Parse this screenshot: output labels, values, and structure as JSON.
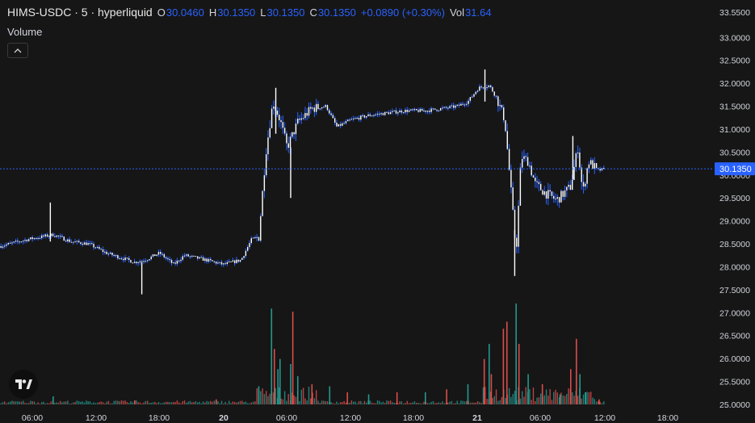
{
  "header": {
    "symbol": "HIMS-USDC · 5 · hyperliquid",
    "open_label": "O",
    "open_value": "30.0460",
    "high_label": "H",
    "high_value": "30.1350",
    "low_label": "L",
    "low_value": "30.1350",
    "close_label": "C",
    "close_value": "30.1350",
    "change": "+0.0890 (+0.30%)",
    "vol_label": "Vol",
    "vol_value": "31.64"
  },
  "volume_pane_label": "Volume",
  "colors": {
    "background": "#161616",
    "candle": "#ffffff",
    "wick": "#2962ff",
    "accent": "#2962ff",
    "volume_up": "#26a69a",
    "volume_down": "#ef5350",
    "axis_text": "#d1d4dc"
  },
  "icons": {
    "collapse": "chevron-up-icon",
    "logo": "tradingview-logo-icon"
  },
  "chart_data": {
    "type": "candlestick",
    "y_ticks": [
      "33.5500",
      "33.0000",
      "32.5000",
      "32.0000",
      "31.5000",
      "31.0000",
      "30.5000",
      "30.0000",
      "29.5000",
      "29.0000",
      "28.5000",
      "28.0000",
      "27.5000",
      "27.0000",
      "26.5000",
      "26.0000",
      "25.5000",
      "25.0000"
    ],
    "x_ticks": [
      "06:00",
      "12:00",
      "18:00",
      "20",
      "06:00",
      "12:00",
      "18:00",
      "21",
      "06:00",
      "12:00",
      "18:00"
    ],
    "bold_x_ticks": [
      "20",
      "21"
    ],
    "ylim": [
      25.0,
      33.55
    ],
    "last_price": 30.135,
    "last_price_label": "30.1350",
    "price_path": [
      [
        0.0,
        28.45
      ],
      [
        0.04,
        28.6
      ],
      [
        0.075,
        28.7
      ],
      [
        0.1,
        28.55
      ],
      [
        0.125,
        28.5
      ],
      [
        0.15,
        28.3
      ],
      [
        0.17,
        28.2
      ],
      [
        0.19,
        28.1
      ],
      [
        0.205,
        28.15
      ],
      [
        0.225,
        28.3
      ],
      [
        0.245,
        28.05
      ],
      [
        0.26,
        28.25
      ],
      [
        0.29,
        28.15
      ],
      [
        0.315,
        28.05
      ],
      [
        0.34,
        28.15
      ],
      [
        0.355,
        28.6
      ],
      [
        0.365,
        28.65
      ],
      [
        0.375,
        30.5
      ],
      [
        0.385,
        31.6
      ],
      [
        0.395,
        31.2
      ],
      [
        0.405,
        30.6
      ],
      [
        0.42,
        31.15
      ],
      [
        0.44,
        31.45
      ],
      [
        0.46,
        31.5
      ],
      [
        0.475,
        31.05
      ],
      [
        0.495,
        31.2
      ],
      [
        0.52,
        31.3
      ],
      [
        0.545,
        31.35
      ],
      [
        0.57,
        31.4
      ],
      [
        0.6,
        31.4
      ],
      [
        0.625,
        31.45
      ],
      [
        0.645,
        31.5
      ],
      [
        0.66,
        31.6
      ],
      [
        0.675,
        31.9
      ],
      [
        0.69,
        31.95
      ],
      [
        0.7,
        31.7
      ],
      [
        0.712,
        31.2
      ],
      [
        0.72,
        29.8
      ],
      [
        0.728,
        28.3
      ],
      [
        0.735,
        30.4
      ],
      [
        0.745,
        30.3
      ],
      [
        0.755,
        29.8
      ],
      [
        0.77,
        29.6
      ],
      [
        0.785,
        29.45
      ],
      [
        0.795,
        29.6
      ],
      [
        0.805,
        29.75
      ],
      [
        0.815,
        30.6
      ],
      [
        0.822,
        29.6
      ],
      [
        0.83,
        30.3
      ],
      [
        0.843,
        30.1
      ],
      [
        0.853,
        30.13
      ]
    ],
    "volume_bars": [
      {
        "x": 0.075,
        "volume": 0.08,
        "direction": "up"
      },
      {
        "x": 0.19,
        "volume": 0.04,
        "direction": "down"
      },
      {
        "x": 0.305,
        "volume": 0.05,
        "direction": "down"
      },
      {
        "x": 0.365,
        "volume": 0.18,
        "direction": "up"
      },
      {
        "x": 0.383,
        "volume": 0.95,
        "direction": "up"
      },
      {
        "x": 0.387,
        "volume": 0.55,
        "direction": "down"
      },
      {
        "x": 0.392,
        "volume": 0.35,
        "direction": "up"
      },
      {
        "x": 0.395,
        "volume": 0.45,
        "direction": "up"
      },
      {
        "x": 0.41,
        "volume": 0.4,
        "direction": "up"
      },
      {
        "x": 0.413,
        "volume": 0.92,
        "direction": "down"
      },
      {
        "x": 0.42,
        "volume": 0.28,
        "direction": "up"
      },
      {
        "x": 0.44,
        "volume": 0.2,
        "direction": "down"
      },
      {
        "x": 0.465,
        "volume": 0.18,
        "direction": "up"
      },
      {
        "x": 0.49,
        "volume": 0.12,
        "direction": "down"
      },
      {
        "x": 0.52,
        "volume": 0.1,
        "direction": "up"
      },
      {
        "x": 0.56,
        "volume": 0.12,
        "direction": "down"
      },
      {
        "x": 0.6,
        "volume": 0.12,
        "direction": "up"
      },
      {
        "x": 0.63,
        "volume": 0.15,
        "direction": "down"
      },
      {
        "x": 0.66,
        "volume": 0.2,
        "direction": "up"
      },
      {
        "x": 0.683,
        "volume": 0.45,
        "direction": "down"
      },
      {
        "x": 0.69,
        "volume": 0.6,
        "direction": "up"
      },
      {
        "x": 0.693,
        "volume": 0.3,
        "direction": "down"
      },
      {
        "x": 0.71,
        "volume": 0.75,
        "direction": "down"
      },
      {
        "x": 0.715,
        "volume": 0.82,
        "direction": "down"
      },
      {
        "x": 0.728,
        "volume": 1.0,
        "direction": "up"
      },
      {
        "x": 0.732,
        "volume": 0.6,
        "direction": "down"
      },
      {
        "x": 0.745,
        "volume": 0.3,
        "direction": "up"
      },
      {
        "x": 0.765,
        "volume": 0.2,
        "direction": "down"
      },
      {
        "x": 0.79,
        "volume": 0.1,
        "direction": "up"
      },
      {
        "x": 0.805,
        "volume": 0.35,
        "direction": "down"
      },
      {
        "x": 0.813,
        "volume": 0.65,
        "direction": "down"
      },
      {
        "x": 0.818,
        "volume": 0.3,
        "direction": "up"
      },
      {
        "x": 0.826,
        "volume": 0.12,
        "direction": "up"
      },
      {
        "x": 0.845,
        "volume": 0.05,
        "direction": "down"
      }
    ]
  }
}
